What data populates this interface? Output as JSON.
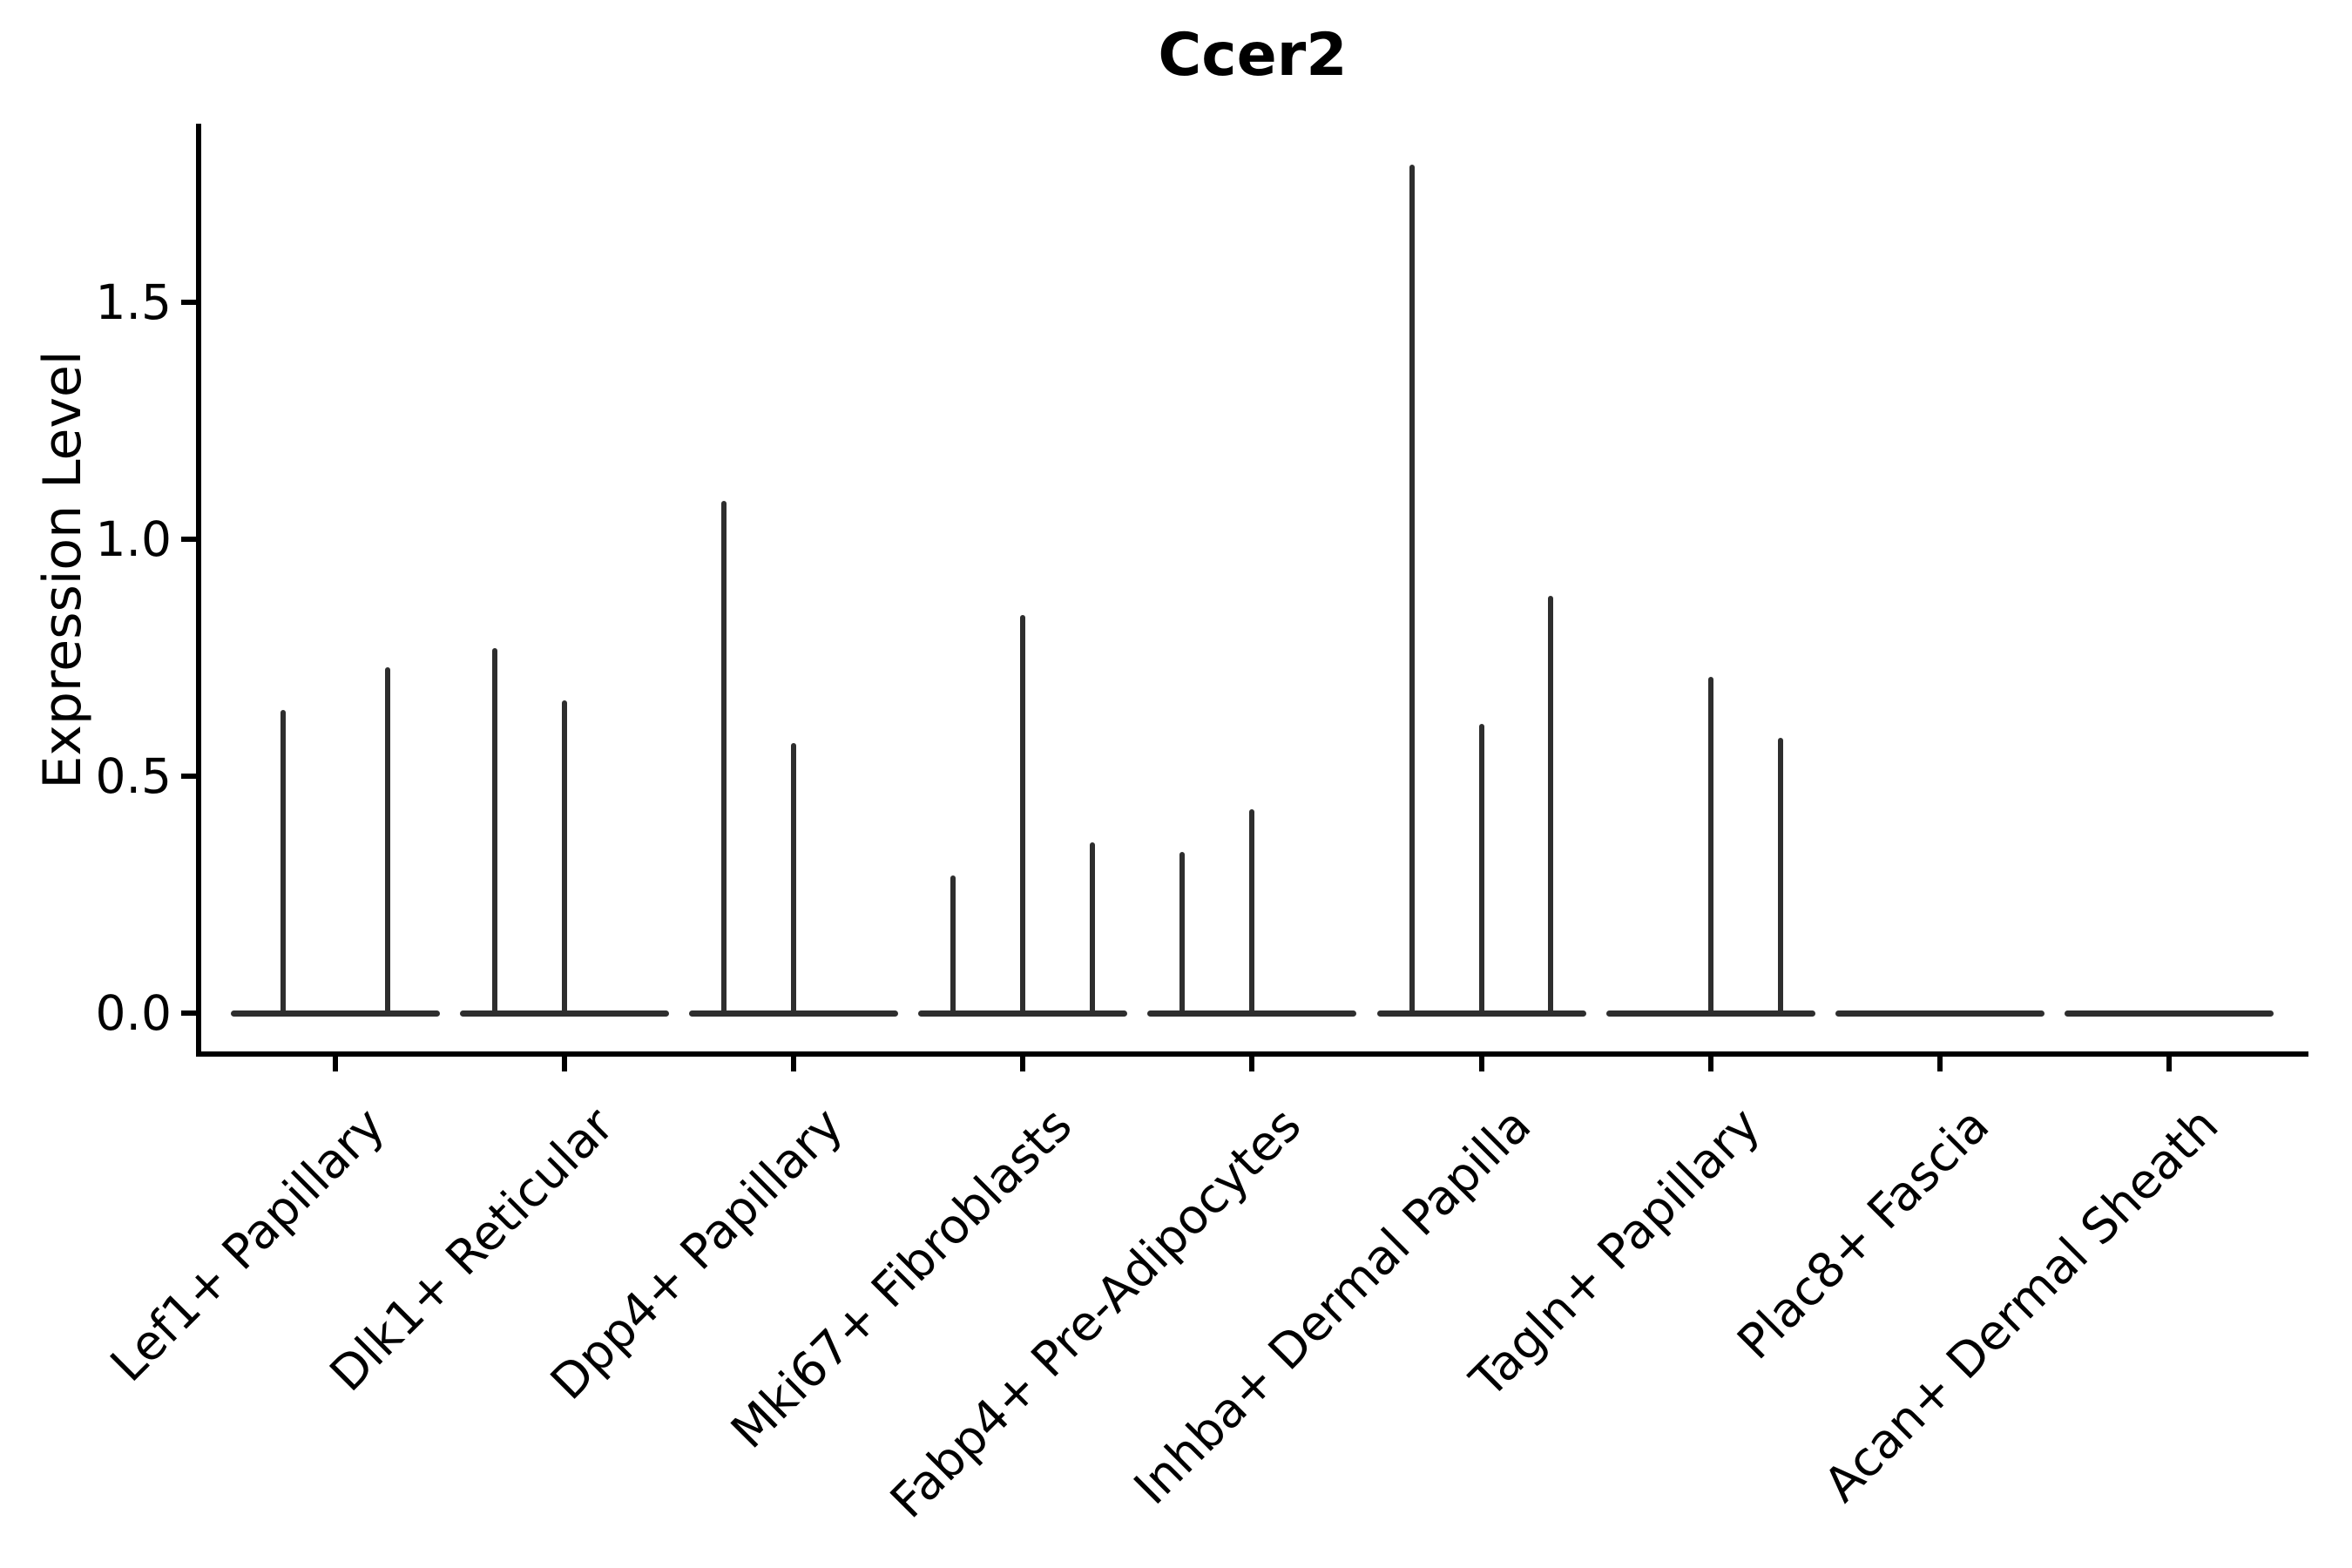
{
  "title": "Ccer2",
  "y_axis": {
    "label": "Expression Level",
    "ticks": [
      {
        "label": "0.0",
        "value": 0.0
      },
      {
        "label": "0.5",
        "value": 0.5
      },
      {
        "label": "1.0",
        "value": 1.0
      },
      {
        "label": "1.5",
        "value": 1.5
      }
    ]
  },
  "chart_data": {
    "type": "violin",
    "title": "Ccer2",
    "xlabel": "",
    "ylabel": "Expression Level",
    "ylim": [
      -0.09,
      1.88
    ],
    "grid": false,
    "legend": false,
    "categories": [
      "Lef1+ Papillary",
      "Dlk1+ Reticular",
      "Dpp4+ Papillary",
      "Mki67+ Fibroblasts",
      "Fabp4+ Pre-Adipocytes",
      "Inhba+ Dermal Papilla",
      "Tagln+ Papillary",
      "Plac8+ Fascia",
      "Acan+ Dermal Sheath"
    ],
    "baseline_value": 0.0,
    "groups": [
      {
        "category": "Lef1+ Papillary",
        "n_violins": 2,
        "spikes": [
          {
            "pos": 0.25,
            "peak": 0.64
          },
          {
            "pos": 0.75,
            "peak": 0.73
          }
        ]
      },
      {
        "category": "Dlk1+ Reticular",
        "n_violins": 3,
        "spikes": [
          {
            "pos": 0.167,
            "peak": 0.77
          },
          {
            "pos": 0.5,
            "peak": 0.66
          }
        ]
      },
      {
        "category": "Dpp4+ Papillary",
        "n_violins": 3,
        "spikes": [
          {
            "pos": 0.167,
            "peak": 1.08
          },
          {
            "pos": 0.5,
            "peak": 0.57
          }
        ]
      },
      {
        "category": "Mki67+ Fibroblasts",
        "n_violins": 3,
        "spikes": [
          {
            "pos": 0.167,
            "peak": 0.29
          },
          {
            "pos": 0.5,
            "peak": 0.84
          },
          {
            "pos": 0.833,
            "peak": 0.36
          }
        ]
      },
      {
        "category": "Fabp4+ Pre-Adipocytes",
        "n_violins": 3,
        "spikes": [
          {
            "pos": 0.167,
            "peak": 0.34
          },
          {
            "pos": 0.5,
            "peak": 0.43
          }
        ]
      },
      {
        "category": "Inhba+ Dermal Papilla",
        "n_violins": 3,
        "spikes": [
          {
            "pos": 0.167,
            "peak": 1.79
          },
          {
            "pos": 0.5,
            "peak": 0.61
          },
          {
            "pos": 0.833,
            "peak": 0.88
          }
        ]
      },
      {
        "category": "Tagln+ Papillary",
        "n_violins": 3,
        "spikes": [
          {
            "pos": 0.5,
            "peak": 0.71
          },
          {
            "pos": 0.833,
            "peak": 0.58
          }
        ]
      },
      {
        "category": "Plac8+ Fascia",
        "n_violins": 3,
        "spikes": []
      },
      {
        "category": "Acan+ Dermal Sheath",
        "n_violins": 3,
        "spikes": []
      }
    ]
  },
  "colors": {
    "background": "#ffffff",
    "violin": "#2e2e2e",
    "axis": "#000000",
    "text": "#000000"
  }
}
